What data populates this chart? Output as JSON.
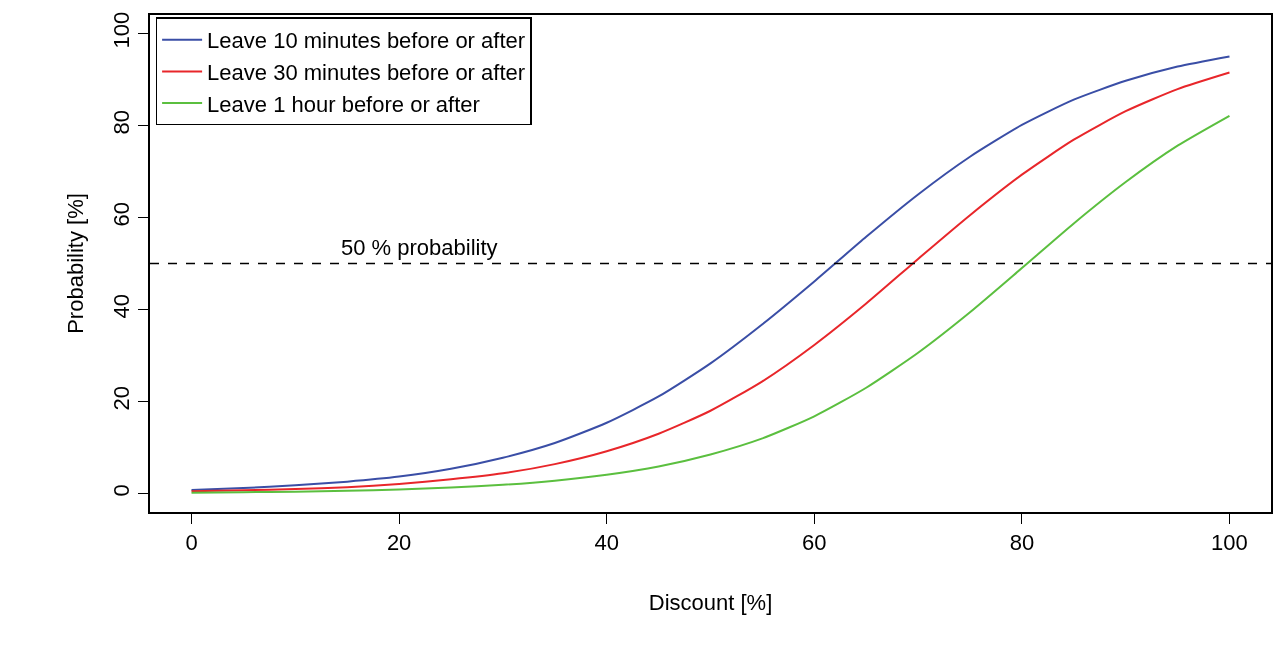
{
  "chart_data": {
    "type": "line",
    "xlabel": "Discount [%]",
    "ylabel": "Probability [%]",
    "x": [
      0,
      5,
      10,
      15,
      20,
      25,
      30,
      35,
      40,
      45,
      50,
      55,
      60,
      65,
      70,
      75,
      80,
      85,
      90,
      95,
      100
    ],
    "series": [
      {
        "name": "Leave 10 minutes before or after",
        "color": "#3a4ea6",
        "values": [
          0.8,
          1.2,
          1.8,
          2.6,
          3.7,
          5.4,
          7.8,
          11.0,
          15.4,
          21.1,
          28.3,
          36.8,
          46.1,
          55.8,
          65.0,
          73.2,
          80.1,
          85.6,
          89.7,
          92.8,
          95.0
        ]
      },
      {
        "name": "Leave 30 minutes before or after",
        "color": "#e8262a",
        "values": [
          0.5,
          0.7,
          1.0,
          1.4,
          2.1,
          3.1,
          4.4,
          6.4,
          9.2,
          13.0,
          18.0,
          24.4,
          32.3,
          41.3,
          51.0,
          60.5,
          69.3,
          76.9,
          83.1,
          87.9,
          91.5
        ]
      },
      {
        "name": "Leave 1 hour before or after",
        "color": "#5bbf3f",
        "values": [
          0.2,
          0.3,
          0.4,
          0.6,
          0.9,
          1.3,
          1.9,
          2.8,
          4.1,
          5.9,
          8.5,
          12.0,
          16.8,
          23.0,
          30.6,
          39.4,
          49.0,
          58.7,
          67.7,
          75.6,
          82.1
        ]
      }
    ],
    "xlim": [
      -4,
      104
    ],
    "ylim": [
      -4,
      104
    ],
    "xticks": [
      0,
      20,
      40,
      60,
      80,
      100
    ],
    "yticks": [
      0,
      20,
      40,
      60,
      80,
      100
    ],
    "ref_lines": [
      {
        "axis": "y",
        "value": 50,
        "label": "50 % probability",
        "color": "#000000",
        "line_style": "dashed"
      }
    ],
    "grid": false,
    "legend": "top left",
    "marker": "none",
    "line_style": "solid"
  }
}
